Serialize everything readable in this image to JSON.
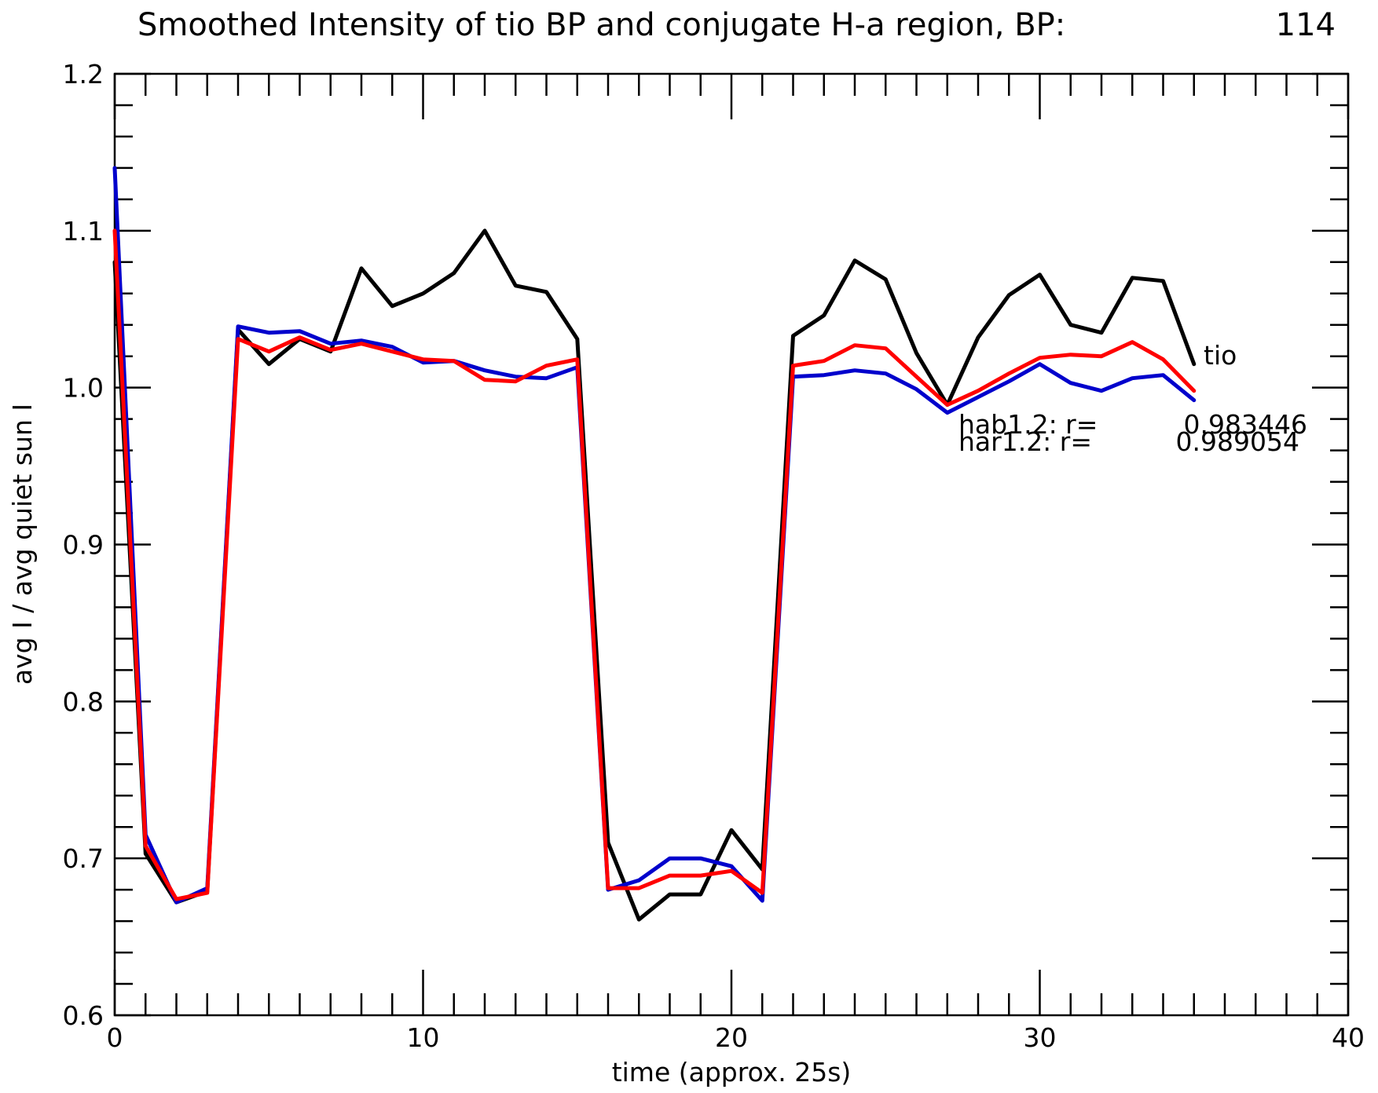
{
  "chart_data": {
    "type": "line",
    "title": "Smoothed Intensity of tio BP and conjugate H-a region, BP:",
    "title_value": "114",
    "xlabel": "time (approx. 25s)",
    "ylabel": "avg I / avg quiet sun I",
    "xlim": [
      0,
      40
    ],
    "ylim": [
      0.6,
      1.2
    ],
    "x_ticks": [
      0,
      10,
      20,
      30,
      40
    ],
    "x_tick_labels": [
      "0",
      "10",
      "20",
      "30",
      "40"
    ],
    "y_ticks": [
      0.6,
      0.7,
      0.8,
      0.9,
      1.0,
      1.1,
      1.2
    ],
    "y_tick_labels": [
      "0.6",
      "0.7",
      "0.8",
      "0.9",
      "1.0",
      "1.1",
      "1.2"
    ],
    "grid": false,
    "x": [
      0,
      1,
      2,
      3,
      4,
      5,
      6,
      7,
      8,
      9,
      10,
      11,
      12,
      13,
      14,
      15,
      16,
      17,
      18,
      19,
      20,
      21,
      22,
      23,
      24,
      25,
      26,
      27,
      28,
      29,
      30,
      31,
      32,
      33,
      34,
      35
    ],
    "series": [
      {
        "color": "#000000",
        "values": [
          1.08,
          0.703,
          0.672,
          0.679,
          1.037,
          1.015,
          1.031,
          1.023,
          1.076,
          1.052,
          1.06,
          1.073,
          1.1,
          1.065,
          1.061,
          1.031,
          0.71,
          0.661,
          0.677,
          0.677,
          0.718,
          0.693,
          1.033,
          1.046,
          1.081,
          1.069,
          1.022,
          0.989,
          1.032,
          1.059,
          1.072,
          1.04,
          1.035,
          1.07,
          1.068,
          1.015
        ]
      },
      {
        "color": "#0000cc",
        "values": [
          1.14,
          0.715,
          0.672,
          0.681,
          1.039,
          1.035,
          1.036,
          1.028,
          1.03,
          1.026,
          1.016,
          1.017,
          1.011,
          1.007,
          1.006,
          1.013,
          0.68,
          0.686,
          0.7,
          0.7,
          0.695,
          0.673,
          1.007,
          1.008,
          1.011,
          1.009,
          0.999,
          0.984,
          0.994,
          1.004,
          1.015,
          1.003,
          0.998,
          1.006,
          1.008,
          0.992
        ]
      },
      {
        "color": "#ff0000",
        "values": [
          1.1,
          0.708,
          0.674,
          0.678,
          1.031,
          1.023,
          1.032,
          1.024,
          1.028,
          1.023,
          1.018,
          1.017,
          1.005,
          1.004,
          1.014,
          1.018,
          0.681,
          0.681,
          0.689,
          0.689,
          0.692,
          0.678,
          1.014,
          1.017,
          1.027,
          1.025,
          1.007,
          0.989,
          0.998,
          1.009,
          1.019,
          1.021,
          1.02,
          1.029,
          1.018,
          0.998
        ]
      }
    ],
    "annotations": [
      {
        "text": "tio"
      },
      {
        "text": "hab1.2: r=",
        "value": "0.983446"
      },
      {
        "text": "har1.2: r=",
        "value": "0.989054"
      }
    ]
  }
}
